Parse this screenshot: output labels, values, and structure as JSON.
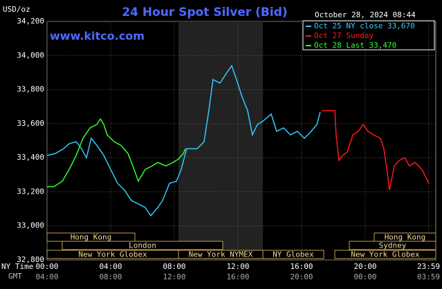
{
  "chart_data": {
    "type": "line",
    "title": "24 Hour Spot Silver (Bid)",
    "date": "October 28, 2024 08:44",
    "website": "www.kitco.com",
    "y_label": "USD/oz",
    "x_labels": [
      "NY Time",
      "GMT"
    ],
    "xlim": [
      0,
      24
    ],
    "ylim": [
      32800,
      34200
    ],
    "grid": true,
    "xticks": [
      {
        "value": 0,
        "label": "00:00"
      },
      {
        "value": 4,
        "label": "04:00"
      },
      {
        "value": 8,
        "label": "08:00"
      },
      {
        "value": 12,
        "label": "12:00"
      },
      {
        "value": 16,
        "label": "16:00"
      },
      {
        "value": 20,
        "label": "20:00"
      },
      {
        "value": 23.98,
        "label": "23:59"
      }
    ],
    "gmt_labels": [
      "04:00",
      "08:00",
      "12:00",
      "16:00",
      "20:00",
      "00:00",
      "03:59"
    ],
    "yticks": [
      {
        "value": 32800,
        "label": "32,800"
      },
      {
        "value": 33000,
        "label": "33,000"
      },
      {
        "value": 33200,
        "label": "33,200"
      },
      {
        "value": 33400,
        "label": "33,400"
      },
      {
        "value": 33600,
        "label": "33,600"
      },
      {
        "value": 33800,
        "label": "33,800"
      },
      {
        "value": 34000,
        "label": "34,000"
      },
      {
        "value": 34200,
        "label": "34,200"
      }
    ],
    "sessions": [
      "Hong Kong",
      "London",
      "New York Globex",
      "New York NYMEX",
      "NY Globex",
      "Hong Kong",
      "Sydney",
      "New York Globex"
    ],
    "series": [
      {
        "name": "Oct 25 NY close 33,670",
        "color": "#33ccff",
        "x": [
          0,
          0.52,
          1.04,
          1.39,
          1.83,
          2.17,
          2.48,
          2.78,
          3.13,
          3.57,
          4.0,
          4.43,
          4.87,
          5.3,
          5.74,
          6.17,
          6.52,
          6.96,
          7.26,
          7.7,
          8.13,
          8.43,
          8.78,
          9.43,
          9.87,
          10.17,
          10.43,
          10.87,
          11.3,
          11.61,
          11.91,
          12.26,
          12.61,
          12.91,
          13.22,
          13.57,
          14.09,
          14.43,
          14.87,
          15.3,
          15.74,
          16.17,
          16.61,
          16.96,
          17.17
        ],
        "values": [
          33413,
          33425,
          33453,
          33482,
          33494,
          33453,
          33400,
          33514,
          33473,
          33413,
          33331,
          33250,
          33210,
          33149,
          33129,
          33108,
          33060,
          33108,
          33149,
          33250,
          33262,
          33331,
          33453,
          33453,
          33494,
          33676,
          33859,
          33838,
          33899,
          33940,
          33859,
          33757,
          33676,
          33534,
          33595,
          33615,
          33656,
          33555,
          33575,
          33534,
          33555,
          33514,
          33555,
          33595,
          33668
        ]
      },
      {
        "name": "Oct 27 Sunday",
        "color": "#ff1a1a",
        "x": [
          17.26,
          18.09,
          18.17,
          18.35,
          18.57,
          18.87,
          19.22,
          19.57,
          19.87,
          20.17,
          20.52,
          20.96,
          21.17,
          21.39,
          21.52,
          21.83,
          22.13,
          22.48,
          22.78,
          23.13,
          23.57,
          24.0
        ],
        "values": [
          33676,
          33676,
          33534,
          33384,
          33413,
          33433,
          33534,
          33555,
          33595,
          33555,
          33534,
          33514,
          33453,
          33311,
          33210,
          33352,
          33384,
          33400,
          33352,
          33372,
          33331,
          33250
        ]
      },
      {
        "name": "Oct 28 Last 33,470",
        "color": "#33ff33",
        "x": [
          0,
          0.43,
          0.96,
          1.39,
          1.83,
          2.26,
          2.7,
          3.13,
          3.35,
          3.57,
          3.78,
          4.22,
          4.65,
          5.09,
          5.39,
          5.74,
          6.17,
          6.61,
          6.96,
          7.48,
          7.91,
          8.26,
          8.57,
          8.7
        ],
        "values": [
          33230,
          33230,
          33262,
          33331,
          33413,
          33514,
          33575,
          33595,
          33628,
          33595,
          33534,
          33494,
          33473,
          33425,
          33352,
          33262,
          33331,
          33352,
          33372,
          33352,
          33372,
          33392,
          33425,
          33453
        ]
      }
    ]
  }
}
